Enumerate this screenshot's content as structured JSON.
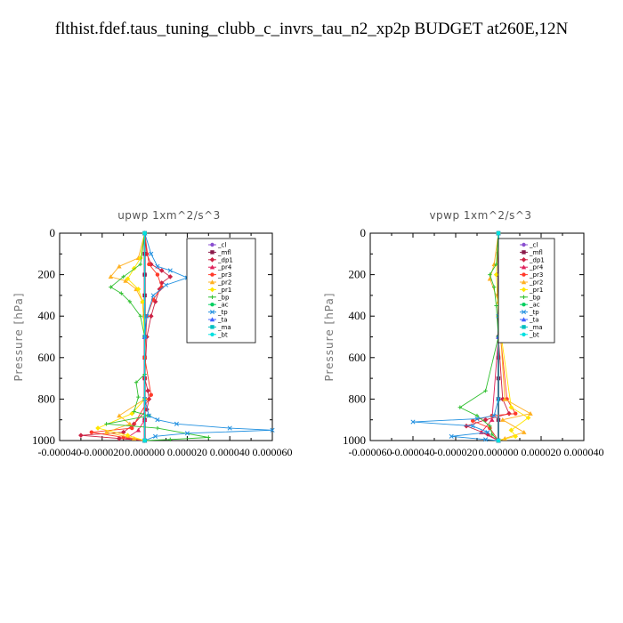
{
  "title": "flthist.fdef.taus_tuning_clubb_c_invrs_tau_n2_xp2p  BUDGET at260E,12N",
  "colors": {
    "cl": "#8a4fd0",
    "mfl": "#8b1a4a",
    "dp1": "#cc2244",
    "pr4": "#e0205a",
    "pr3": "#ff3a2a",
    "pr2": "#ffb020",
    "pr1": "#ffe600",
    "bp": "#30c030",
    "ac": "#00d060",
    "tp": "#2090e0",
    "ta": "#4060ff",
    "ma": "#00c0c0",
    "bt": "#00e0e0"
  },
  "chart_data": [
    {
      "type": "line",
      "title": "upwp   1xm^2/s^3",
      "ylabel": "Pressure  [hPa]",
      "xlabel": "",
      "ylim": [
        1000,
        0
      ],
      "xlim": [
        -4e-05,
        6e-05
      ],
      "yticks": [
        "0",
        "200",
        "400",
        "600",
        "800",
        "1000"
      ],
      "xticks": [
        "-0.000040",
        "-0.000020",
        "0.000000",
        "0.000020",
        "0.000040",
        "0.000060"
      ],
      "legend": [
        "_cl",
        "_mfl",
        "_dp1",
        "_pr4",
        "_pr3",
        "_pr2",
        "_pr1",
        "_bp",
        "_ac",
        "_tp",
        "_ta",
        "_ma",
        "_bt"
      ],
      "series": [
        {
          "name": "_cl",
          "color_key": "cl",
          "points": [
            [
              0,
              0
            ],
            [
              0,
              200
            ],
            [
              0,
              400
            ],
            [
              0,
              600
            ],
            [
              0,
              800
            ],
            [
              0,
              1000
            ]
          ]
        },
        {
          "name": "_mfl",
          "color_key": "mfl",
          "points": [
            [
              0,
              0
            ],
            [
              0,
              100
            ],
            [
              0,
              200
            ],
            [
              0,
              300
            ],
            [
              0,
              400
            ],
            [
              0,
              500
            ],
            [
              0,
              600
            ],
            [
              0,
              700
            ],
            [
              0,
              800
            ],
            [
              0,
              900
            ],
            [
              0,
              1000
            ]
          ]
        },
        {
          "name": "_dp1",
          "color_key": "dp1",
          "points": [
            [
              0,
              0
            ],
            [
              1e-06,
              100
            ],
            [
              3e-06,
              150
            ],
            [
              8e-06,
              180
            ],
            [
              1.2e-05,
              210
            ],
            [
              8e-06,
              240
            ],
            [
              7e-06,
              270
            ],
            [
              5e-06,
              330
            ],
            [
              3e-06,
              400
            ],
            [
              1e-06,
              500
            ],
            [
              0,
              700
            ],
            [
              1.5e-06,
              760
            ],
            [
              2e-06,
              800
            ],
            [
              1e-06,
              850
            ],
            [
              -5e-06,
              920
            ],
            [
              -1e-05,
              960
            ],
            [
              -3e-05,
              975
            ],
            [
              -1.2e-05,
              990
            ],
            [
              0,
              1000
            ]
          ]
        },
        {
          "name": "_pr4",
          "color_key": "pr4",
          "points": [
            [
              0,
              0
            ],
            [
              0,
              500
            ],
            [
              0,
              900
            ],
            [
              -3e-06,
              950
            ],
            [
              -8e-06,
              985
            ],
            [
              0,
              1000
            ]
          ]
        },
        {
          "name": "_pr3",
          "color_key": "pr3",
          "points": [
            [
              0,
              0
            ],
            [
              2e-06,
              150
            ],
            [
              6e-06,
              200
            ],
            [
              8e-06,
              260
            ],
            [
              4e-06,
              320
            ],
            [
              1e-06,
              400
            ],
            [
              0,
              600
            ],
            [
              3e-06,
              780
            ],
            [
              -6e-06,
              940
            ],
            [
              -2.5e-05,
              960
            ],
            [
              -1e-05,
              985
            ],
            [
              0,
              1000
            ]
          ]
        },
        {
          "name": "_pr2",
          "color_key": "pr2",
          "points": [
            [
              0,
              0
            ],
            [
              -3e-06,
              120
            ],
            [
              -1.2e-05,
              160
            ],
            [
              -1.6e-05,
              210
            ],
            [
              -9e-06,
              230
            ],
            [
              -4e-06,
              270
            ],
            [
              -1e-06,
              330
            ],
            [
              0,
              500
            ],
            [
              0,
              800
            ],
            [
              -1.2e-05,
              880
            ],
            [
              -7e-06,
              920
            ],
            [
              -1.8e-05,
              960
            ],
            [
              -5e-06,
              990
            ],
            [
              0,
              1000
            ]
          ]
        },
        {
          "name": "_pr1",
          "color_key": "pr1",
          "points": [
            [
              0,
              0
            ],
            [
              -2e-06,
              120
            ],
            [
              -5e-06,
              170
            ],
            [
              -8e-06,
              220
            ],
            [
              -3e-06,
              270
            ],
            [
              -1e-06,
              330
            ],
            [
              0,
              500
            ],
            [
              0,
              800
            ],
            [
              -6e-06,
              870
            ],
            [
              -2.2e-05,
              940
            ],
            [
              -8e-06,
              975
            ],
            [
              0,
              1000
            ]
          ]
        },
        {
          "name": "_bp",
          "color_key": "bp",
          "points": [
            [
              0,
              0
            ],
            [
              -2e-06,
              150
            ],
            [
              -1e-05,
              210
            ],
            [
              -1.6e-05,
              260
            ],
            [
              -1.1e-05,
              290
            ],
            [
              -7e-06,
              330
            ],
            [
              -2e-06,
              400
            ],
            [
              0,
              500
            ],
            [
              0,
              680
            ],
            [
              -4e-06,
              720
            ],
            [
              -3e-06,
              790
            ],
            [
              -5e-06,
              860
            ],
            [
              2e-06,
              880
            ],
            [
              -1.8e-05,
              920
            ],
            [
              6e-06,
              940
            ],
            [
              3e-05,
              985
            ],
            [
              1.2e-05,
              995
            ],
            [
              0,
              1000
            ]
          ]
        },
        {
          "name": "_ac",
          "color_key": "ac",
          "points": [
            [
              0,
              0
            ],
            [
              0,
              500
            ],
            [
              0,
              1000
            ]
          ]
        },
        {
          "name": "_tp",
          "color_key": "tp",
          "points": [
            [
              0,
              0
            ],
            [
              3e-06,
              100
            ],
            [
              6e-06,
              160
            ],
            [
              1.2e-05,
              180
            ],
            [
              2e-05,
              215
            ],
            [
              1e-05,
              250
            ],
            [
              4e-06,
              300
            ],
            [
              1e-06,
              400
            ],
            [
              0,
              500
            ],
            [
              0,
              800
            ],
            [
              2e-06,
              880
            ],
            [
              6e-06,
              900
            ],
            [
              1.5e-05,
              920
            ],
            [
              4e-05,
              940
            ],
            [
              6e-05,
              950
            ],
            [
              2e-05,
              965
            ],
            [
              5e-06,
              980
            ],
            [
              0,
              1000
            ]
          ]
        },
        {
          "name": "_ta",
          "color_key": "ta",
          "points": [
            [
              0,
              0
            ],
            [
              0,
              500
            ],
            [
              0,
              1000
            ]
          ]
        },
        {
          "name": "_ma",
          "color_key": "ma",
          "points": [
            [
              0,
              0
            ],
            [
              0,
              1000
            ]
          ]
        },
        {
          "name": "_bt",
          "color_key": "bt",
          "points": [
            [
              0,
              0
            ],
            [
              0,
              1000
            ]
          ]
        }
      ]
    },
    {
      "type": "line",
      "title": "vpwp   1xm^2/s^3",
      "ylabel": "Pressure  [hPa]",
      "xlabel": "",
      "ylim": [
        1000,
        0
      ],
      "xlim": [
        -6e-05,
        4e-05
      ],
      "yticks": [
        "0",
        "200",
        "400",
        "600",
        "800",
        "1000"
      ],
      "xticks": [
        "-0.000060",
        "-0.000040",
        "-0.000020",
        "0.000000",
        "0.000020",
        "0.000040"
      ],
      "legend": [
        "_cl",
        "_mfl",
        "_dp1",
        "_pr4",
        "_pr3",
        "_pr2",
        "_pr1",
        "_bp",
        "_ac",
        "_tp",
        "_ta",
        "_ma",
        "_bt"
      ],
      "series": [
        {
          "name": "_cl",
          "color_key": "cl",
          "points": [
            [
              0,
              0
            ],
            [
              0,
              200
            ],
            [
              0,
              400
            ],
            [
              0,
              600
            ],
            [
              0,
              800
            ],
            [
              0,
              1000
            ]
          ]
        },
        {
          "name": "_mfl",
          "color_key": "mfl",
          "points": [
            [
              0,
              0
            ],
            [
              0,
              100
            ],
            [
              0,
              200
            ],
            [
              0,
              300
            ],
            [
              0,
              400
            ],
            [
              0,
              500
            ],
            [
              0,
              600
            ],
            [
              0,
              700
            ],
            [
              0,
              800
            ],
            [
              0,
              900
            ],
            [
              0,
              1000
            ]
          ]
        },
        {
          "name": "_dp1",
          "color_key": "dp1",
          "points": [
            [
              0,
              0
            ],
            [
              0,
              500
            ],
            [
              2e-06,
              800
            ],
            [
              5e-06,
              870
            ],
            [
              -6e-06,
              900
            ],
            [
              -1.5e-05,
              930
            ],
            [
              -5e-06,
              970
            ],
            [
              0,
              1000
            ]
          ]
        },
        {
          "name": "_pr4",
          "color_key": "pr4",
          "points": [
            [
              0,
              0
            ],
            [
              0,
              500
            ],
            [
              -3e-06,
              900
            ],
            [
              -8e-06,
              960
            ],
            [
              0,
              1000
            ]
          ]
        },
        {
          "name": "_pr3",
          "color_key": "pr3",
          "points": [
            [
              0,
              0
            ],
            [
              2e-06,
              200
            ],
            [
              0,
              400
            ],
            [
              4e-06,
              800
            ],
            [
              8e-06,
              870
            ],
            [
              -3e-06,
              880
            ],
            [
              -1.2e-05,
              905
            ],
            [
              -4e-06,
              940
            ],
            [
              0,
              1000
            ]
          ]
        },
        {
          "name": "_pr2",
          "color_key": "pr2",
          "points": [
            [
              0,
              0
            ],
            [
              -2e-06,
              150
            ],
            [
              -4e-06,
              220
            ],
            [
              0,
              330
            ],
            [
              3e-06,
              800
            ],
            [
              1.5e-05,
              870
            ],
            [
              2e-06,
              900
            ],
            [
              1.2e-05,
              960
            ],
            [
              3e-06,
              990
            ],
            [
              0,
              1000
            ]
          ]
        },
        {
          "name": "_pr1",
          "color_key": "pr1",
          "points": [
            [
              0,
              0
            ],
            [
              -1e-06,
              200
            ],
            [
              0,
              400
            ],
            [
              6e-06,
              840
            ],
            [
              1.4e-05,
              890
            ],
            [
              6e-06,
              950
            ],
            [
              8e-06,
              980
            ],
            [
              0,
              1000
            ]
          ]
        },
        {
          "name": "_bp",
          "color_key": "bp",
          "points": [
            [
              0,
              0
            ],
            [
              -1e-06,
              150
            ],
            [
              -4e-06,
              200
            ],
            [
              -2e-06,
              260
            ],
            [
              -1e-06,
              350
            ],
            [
              0,
              500
            ],
            [
              -6e-06,
              760
            ],
            [
              -1.8e-05,
              840
            ],
            [
              -1e-05,
              880
            ],
            [
              -4e-06,
              930
            ],
            [
              -3e-06,
              970
            ],
            [
              0,
              1000
            ]
          ]
        },
        {
          "name": "_ac",
          "color_key": "ac",
          "points": [
            [
              0,
              0
            ],
            [
              0,
              500
            ],
            [
              0,
              1000
            ]
          ]
        },
        {
          "name": "_tp",
          "color_key": "tp",
          "points": [
            [
              0,
              0
            ],
            [
              1e-06,
              100
            ],
            [
              3e-06,
              200
            ],
            [
              0,
              400
            ],
            [
              0,
              800
            ],
            [
              -2e-06,
              880
            ],
            [
              -1e-05,
              895
            ],
            [
              -4e-05,
              910
            ],
            [
              -1.2e-05,
              930
            ],
            [
              -5e-06,
              960
            ],
            [
              -2.2e-05,
              980
            ],
            [
              -6e-06,
              995
            ],
            [
              0,
              1000
            ]
          ]
        },
        {
          "name": "_ta",
          "color_key": "ta",
          "points": [
            [
              0,
              0
            ],
            [
              0,
              500
            ],
            [
              0,
              1000
            ]
          ]
        },
        {
          "name": "_ma",
          "color_key": "ma",
          "points": [
            [
              0,
              0
            ],
            [
              0,
              1000
            ]
          ]
        },
        {
          "name": "_bt",
          "color_key": "bt",
          "points": [
            [
              0,
              0
            ],
            [
              0,
              1000
            ]
          ]
        }
      ]
    }
  ]
}
